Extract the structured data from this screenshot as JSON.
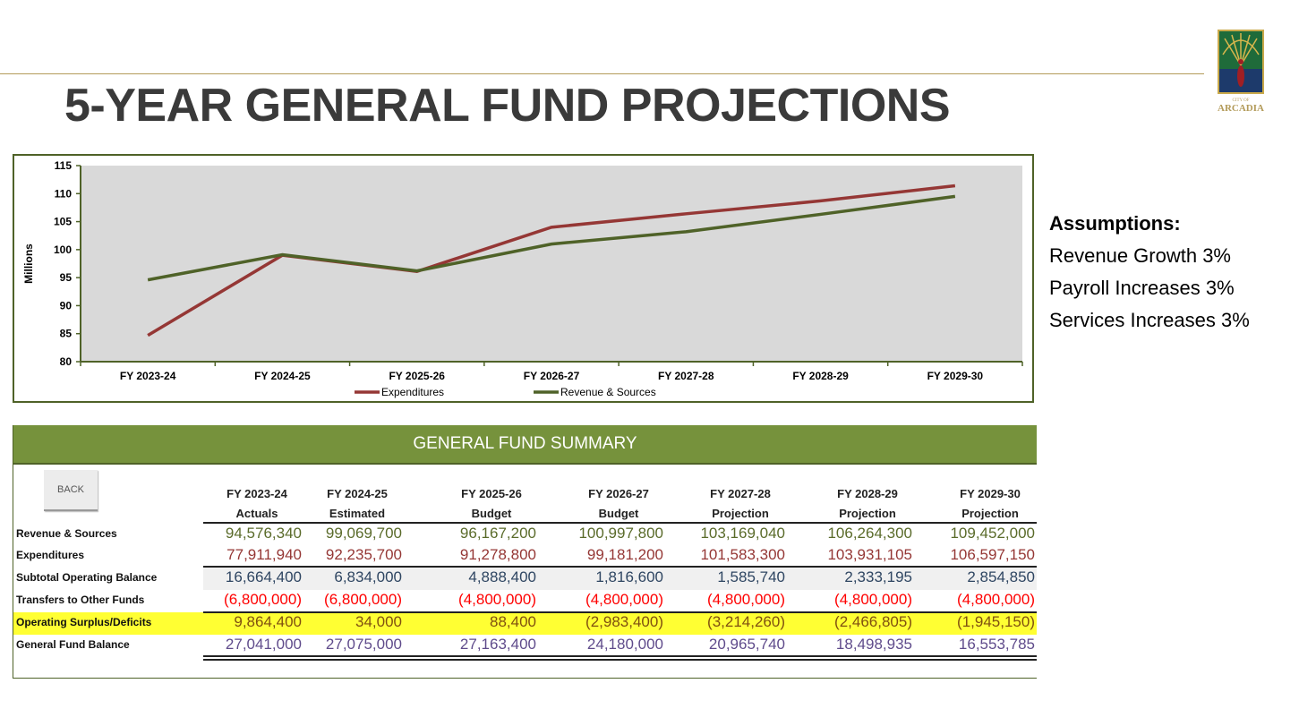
{
  "title": "5-YEAR GENERAL FUND PROJECTIONS",
  "logo": {
    "small": "CITY OF",
    "name": "ARCADIA"
  },
  "assumptions": {
    "heading": "Assumptions:",
    "items": [
      "Revenue Growth 3%",
      "Payroll Increases 3%",
      "Services Increases 3%"
    ]
  },
  "chart_data": {
    "type": "line",
    "categories": [
      "FY 2023-24",
      "FY 2024-25",
      "FY 2025-26",
      "FY 2026-27",
      "FY 2027-28",
      "FY 2028-29",
      "FY 2029-30"
    ],
    "series": [
      {
        "name": "Expenditures",
        "color": "#953735",
        "values": [
          84.7,
          99.0,
          96.1,
          104.0,
          106.4,
          108.7,
          111.4
        ]
      },
      {
        "name": "Revenue & Sources",
        "color": "#4f6228",
        "values": [
          94.6,
          99.1,
          96.2,
          101.0,
          103.2,
          106.3,
          109.5
        ]
      }
    ],
    "ylabel": "Millions",
    "ylim": [
      80,
      115
    ],
    "yticks": [
      80,
      85,
      90,
      95,
      100,
      105,
      110,
      115
    ],
    "grid": false,
    "legend": "bottom",
    "plot_bg": "#d9d9d9"
  },
  "table": {
    "title": "GENERAL FUND SUMMARY",
    "back": "BACK",
    "columns": [
      [
        "FY 2023-24",
        "Actuals"
      ],
      [
        "FY 2024-25",
        "Estimated"
      ],
      [
        "FY 2025-26",
        "Budget"
      ],
      [
        "FY 2026-27",
        "Budget"
      ],
      [
        "FY 2027-28",
        "Projection"
      ],
      [
        "FY 2028-29",
        "Projection"
      ],
      [
        "FY 2029-30",
        "Projection"
      ]
    ],
    "rows": [
      {
        "label": "Revenue & Sources",
        "color": "#5a6b2a",
        "values": [
          "94,576,340",
          "99,069,700",
          "96,167,200",
          "100,997,800",
          "103,169,040",
          "106,264,300",
          "109,452,000"
        ]
      },
      {
        "label": "Expenditures",
        "color": "#953735",
        "values": [
          "77,911,940",
          "92,235,700",
          "91,278,800",
          "99,181,200",
          "101,583,300",
          "103,931,105",
          "106,597,150"
        ]
      },
      {
        "label": "Subtotal Operating Balance",
        "color": "#2f4662",
        "values": [
          "16,664,400",
          "6,834,000",
          "4,888,400",
          "1,816,600",
          "1,585,740",
          "2,333,195",
          "2,854,850"
        ]
      },
      {
        "label": "Transfers to Other Funds",
        "color": "#ff0000",
        "values": [
          "(6,800,000)",
          "(6,800,000)",
          "(4,800,000)",
          "(4,800,000)",
          "(4,800,000)",
          "(4,800,000)",
          "(4,800,000)"
        ]
      },
      {
        "label": "Operating Surplus/Deficits",
        "color": "#7f4f10",
        "values": [
          "9,864,400",
          "34,000",
          "88,400",
          "(2,983,400)",
          "(3,214,260)",
          "(2,466,805)",
          "(1,945,150)"
        ]
      },
      {
        "label": "General Fund Balance",
        "color": "#5f4b8b",
        "values": [
          "27,041,000",
          "27,075,000",
          "27,163,400",
          "24,180,000",
          "20,965,740",
          "18,498,935",
          "16,553,785"
        ]
      }
    ]
  }
}
